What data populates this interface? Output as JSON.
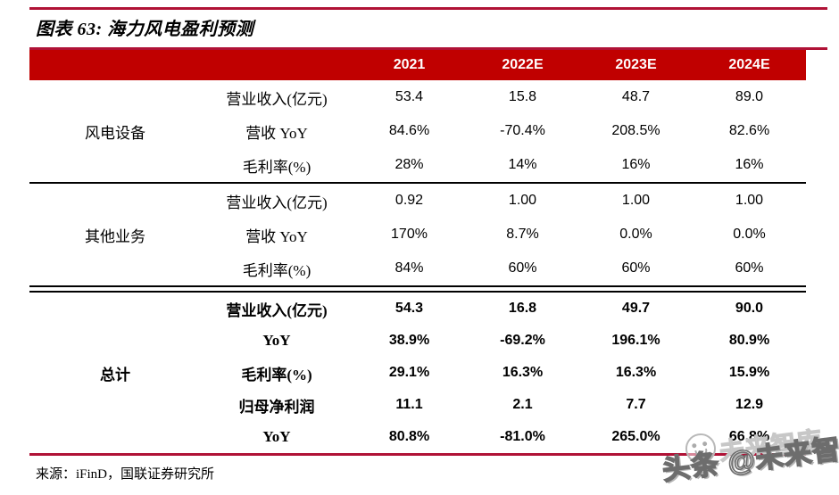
{
  "figure": {
    "title": "图表 63: 海力风电盈利预测",
    "source": "来源：iFinD，国联证券研究所"
  },
  "colors": {
    "header_band_red": "#C00000",
    "rule_red": "#B01236",
    "text_black": "#000000",
    "watermark_gray": "#9A9A9A"
  },
  "table": {
    "col_headers": [
      "2021",
      "2022E",
      "2023E",
      "2024E"
    ],
    "groups": [
      {
        "label": "风电设备",
        "rows": [
          {
            "metric": "营业收入(亿元)",
            "values": [
              "53.4",
              "15.8",
              "48.7",
              "89.0"
            ]
          },
          {
            "metric": "营收 YoY",
            "values": [
              "84.6%",
              "-70.4%",
              "208.5%",
              "82.6%"
            ]
          },
          {
            "metric": "毛利率(%)",
            "values": [
              "28%",
              "14%",
              "16%",
              "16%"
            ]
          }
        ]
      },
      {
        "label": "其他业务",
        "rows": [
          {
            "metric": "营业收入(亿元)",
            "values": [
              "0.92",
              "1.00",
              "1.00",
              "1.00"
            ]
          },
          {
            "metric": "营收 YoY",
            "values": [
              "170%",
              "8.7%",
              "0.0%",
              "0.0%"
            ]
          },
          {
            "metric": "毛利率(%)",
            "values": [
              "84%",
              "60%",
              "60%",
              "60%"
            ]
          }
        ]
      },
      {
        "label": "总计",
        "rows": [
          {
            "metric": "营业收入(亿元)",
            "values": [
              "54.3",
              "16.8",
              "49.7",
              "90.0"
            ]
          },
          {
            "metric": "YoY",
            "values": [
              "38.9%",
              "-69.2%",
              "196.1%",
              "80.9%"
            ]
          },
          {
            "metric": "毛利率(%)",
            "values": [
              "29.1%",
              "16.3%",
              "16.3%",
              "15.9%"
            ]
          },
          {
            "metric": "归母净利润",
            "values": [
              "11.1",
              "2.1",
              "7.7",
              "12.9"
            ]
          },
          {
            "metric": "YoY",
            "values": [
              "80.8%",
              "-81.0%",
              "265.0%",
              "66.8%"
            ]
          }
        ]
      }
    ]
  },
  "watermark": {
    "text": "头条 @未来智库",
    "ghost_text": "未来智库"
  }
}
